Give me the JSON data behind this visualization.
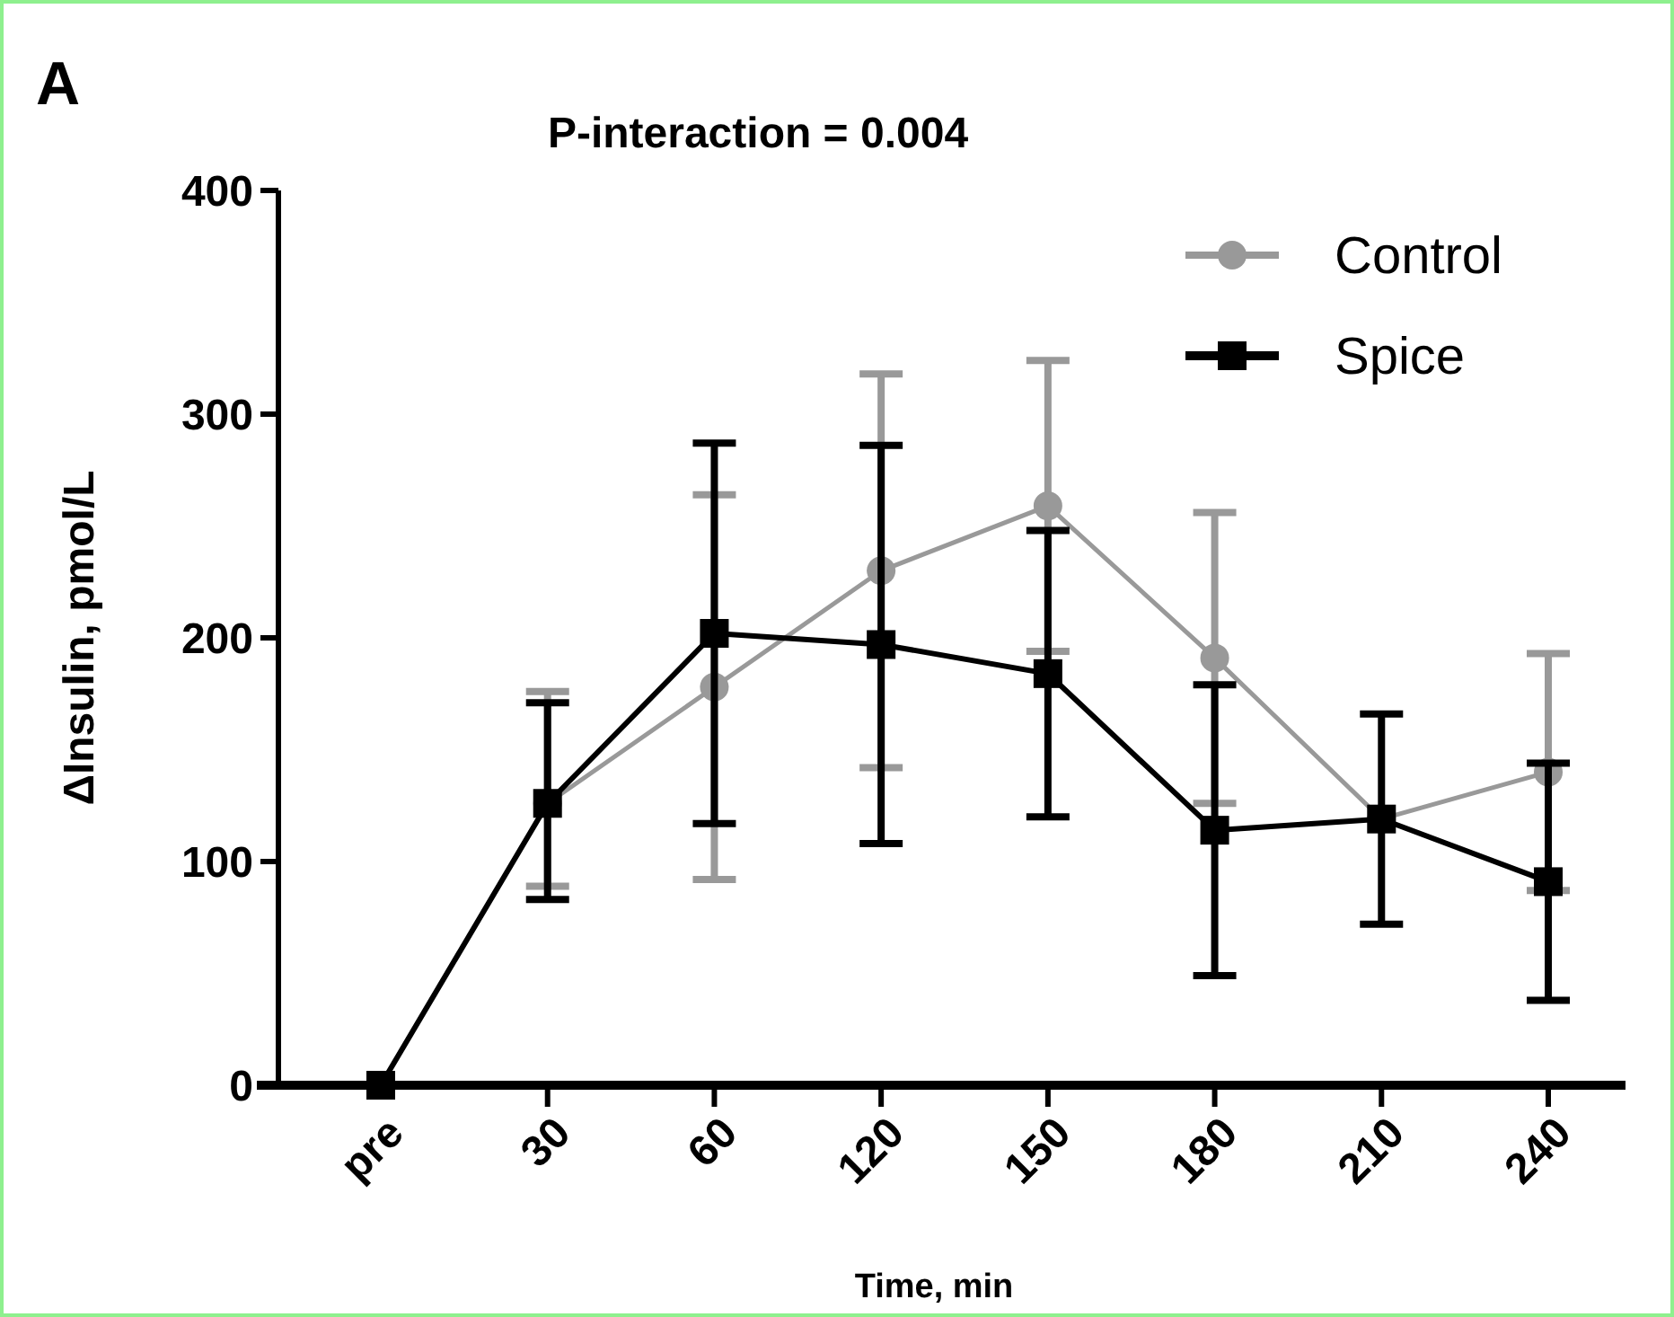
{
  "chart_data": {
    "type": "line",
    "title": "P-interaction = 0.004",
    "xlabel": "Time, min",
    "ylabel": "ΔInsulin, pmol/L",
    "annotations": [
      "A"
    ],
    "categories": [
      "pre",
      "30",
      "60",
      "120",
      "150",
      "180",
      "210",
      "240"
    ],
    "ylim": [
      0,
      400
    ],
    "yticks": [
      0,
      100,
      200,
      300,
      400
    ],
    "grid": false,
    "legend": "top right",
    "series": [
      {
        "name": "Control",
        "color": "#999999",
        "marker": "circle",
        "values": [
          0,
          126,
          178,
          230,
          259,
          191,
          119,
          140
        ],
        "errors": [
          null,
          [
            89,
            176
          ],
          86,
          88,
          65,
          65,
          null,
          53
        ]
      },
      {
        "name": "Spice",
        "color": "#000000",
        "marker": "square",
        "values": [
          0,
          126,
          202,
          197,
          184,
          114,
          119,
          91
        ],
        "errors": [
          null,
          [
            83,
            171
          ],
          85,
          89,
          64,
          65,
          47,
          53
        ]
      }
    ]
  }
}
